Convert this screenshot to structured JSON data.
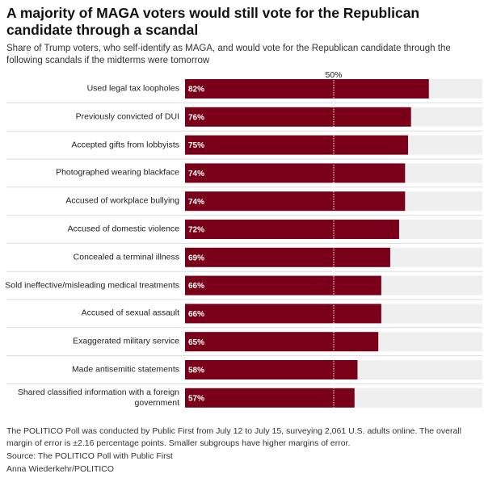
{
  "chart_data": {
    "type": "bar",
    "orientation": "horizontal",
    "title": "A majority of MAGA voters would still vote for the Republican candidate through a scandal",
    "subtitle": "Share of Trump voters, who self-identify as MAGA, and would vote for the Republican candidate through the following scandals if the midterms were tomorrow",
    "categories": [
      "Used legal tax loopholes",
      "Previously convicted of DUI",
      "Accepted gifts from lobbyists",
      "Photographed wearing blackface",
      "Accused of workplace bullying",
      "Accused of domestic violence",
      "Concealed a terminal illness",
      "Sold ineffective/misleading medical treatments",
      "Accused of sexual assault",
      "Exaggerated military service",
      "Made antisemitic statements",
      "Shared classified information with a foreign government"
    ],
    "values": [
      82,
      76,
      75,
      74,
      74,
      72,
      69,
      66,
      66,
      65,
      58,
      57
    ],
    "value_labels": [
      "82%",
      "76%",
      "75%",
      "74%",
      "74%",
      "72%",
      "69%",
      "66%",
      "66%",
      "65%",
      "58%",
      "57%"
    ],
    "color": "#7a0019",
    "xlim": [
      0,
      100
    ],
    "xticks": [
      {
        "value": 50,
        "label": "50%"
      }
    ],
    "note": "The POLITICO Poll was conducted by Public First from July 12 to July 15, surveying 2,061 U.S. adults online. The overall margin of error is ±2.16 percentage points. Smaller subgroups have higher margins of error.",
    "source": "Source: The POLITICO Poll with Public First",
    "credit": "Anna Wiederkehr/POLITICO"
  }
}
